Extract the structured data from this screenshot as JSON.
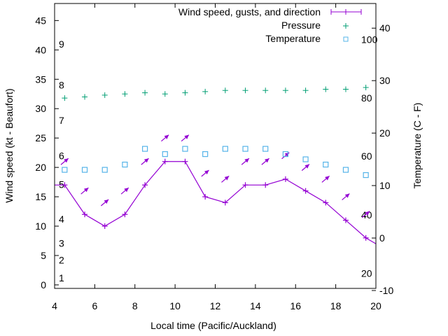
{
  "chart_data": {
    "type": "line",
    "xlabel": "Local time (Pacific/Auckland)",
    "ylabel": "Wind speed (kt - Beaufort)",
    "y2label": "Temperature (C - F)",
    "xlim": [
      4,
      20
    ],
    "ylim": [
      -0.6,
      47.9
    ],
    "y2lim": [
      -9.6,
      44.7
    ],
    "xticks": [
      4,
      6,
      8,
      10,
      12,
      14,
      16,
      18,
      20
    ],
    "yticks": [
      0,
      5,
      10,
      15,
      20,
      25,
      30,
      35,
      40,
      45
    ],
    "y2ticks": [
      -10,
      0,
      10,
      20,
      30,
      40
    ],
    "legend_position": "top-right",
    "legend": [
      "Wind speed, gusts, and direction",
      "Pressure",
      "Temperature"
    ],
    "colors": {
      "wind": "#9400d3",
      "pressure": "#009e73",
      "temperature": "#56b4e9"
    },
    "x": [
      4.5,
      5.5,
      6.5,
      7.5,
      8.5,
      9.5,
      10.5,
      11.5,
      12.5,
      13.5,
      14.5,
      15.5,
      16.5,
      17.5,
      18.5,
      19.5
    ],
    "series": [
      {
        "name": "Wind speed",
        "axis": "y",
        "values": [
          17,
          12,
          10,
          12,
          17,
          21,
          21,
          15,
          14,
          17,
          17,
          18,
          16,
          14,
          11,
          8
        ]
      },
      {
        "name": "Gusts",
        "axis": "y",
        "values": [
          21,
          16,
          14,
          16,
          21,
          25,
          25,
          19,
          18,
          21,
          21,
          22,
          20,
          18,
          15,
          12
        ]
      },
      {
        "name": "Pressure",
        "axis": "y",
        "values": [
          31.8,
          32.0,
          32.3,
          32.5,
          32.7,
          32.5,
          32.7,
          32.9,
          33.1,
          33.1,
          33.1,
          33.1,
          33.1,
          33.3,
          33.3,
          33.6
        ]
      },
      {
        "name": "Temperature",
        "axis": "y2",
        "values": [
          13,
          13,
          13,
          14,
          17,
          16,
          17,
          16,
          17,
          17,
          17,
          16,
          15,
          14,
          13,
          12
        ]
      }
    ],
    "wind_line_ends": {
      "start": [
        4,
        17
      ],
      "end": [
        20,
        7
      ]
    },
    "direction_arrow_angle_deg": 40,
    "beaufort_labels": [
      {
        "label": "1",
        "y": 1.2
      },
      {
        "label": "2",
        "y": 4.2
      },
      {
        "label": "3",
        "y": 7.1
      },
      {
        "label": "4",
        "y": 11.2
      },
      {
        "label": "5",
        "y": 17.1
      },
      {
        "label": "6",
        "y": 22
      },
      {
        "label": "7",
        "y": 28
      },
      {
        "label": "8",
        "y": 34
      },
      {
        "label": "9",
        "y": 41
      }
    ],
    "fahrenheit_labels": [
      {
        "label": "20",
        "c": -6.7
      },
      {
        "label": "40",
        "c": 4.4
      },
      {
        "label": "60",
        "c": 15.6
      },
      {
        "label": "80",
        "c": 26.7
      },
      {
        "label": "100",
        "c": 37.8
      }
    ]
  }
}
